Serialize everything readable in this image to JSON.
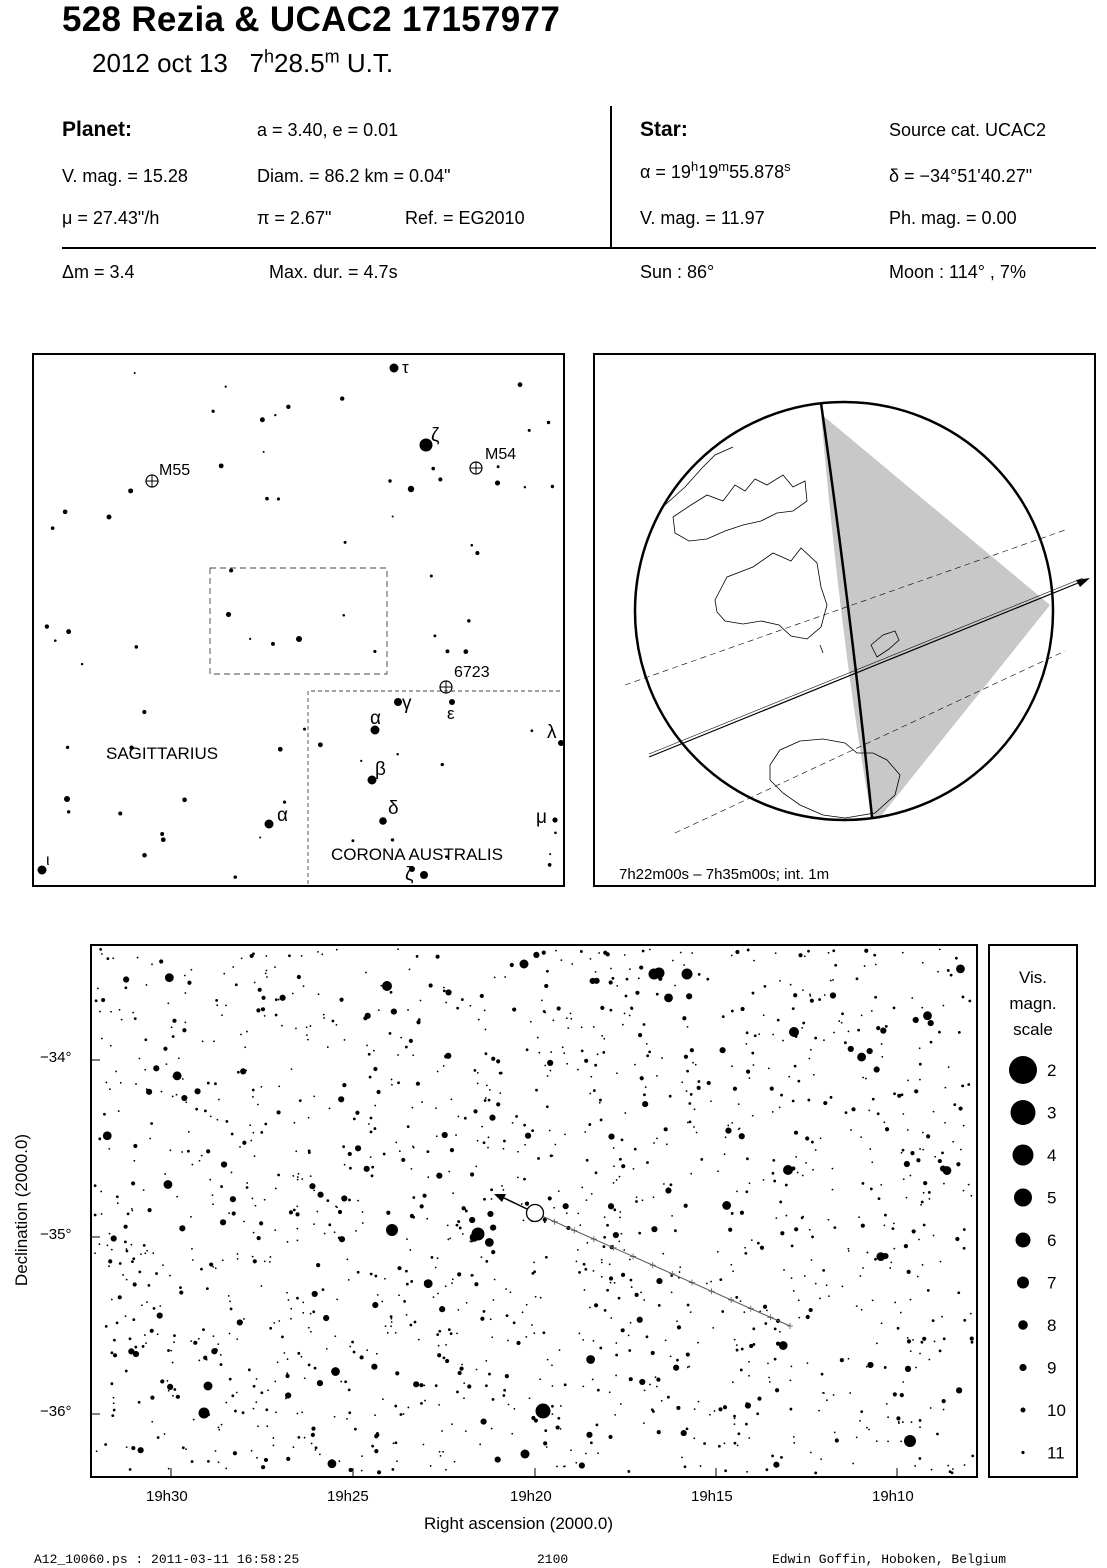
{
  "header": {
    "title": "528 Rezia  &  UCAC2 17157977",
    "date": "2012 oct 13",
    "time_h": "7",
    "time_h_unit": "h",
    "time_m": "28.5",
    "time_m_unit": "m",
    "time_suffix": "U.T."
  },
  "planet": {
    "label": "Planet:",
    "orbit": "a = 3.40, e = 0.01",
    "vmag": "V. mag. = 15.28",
    "diam": "Diam. = 86.2 km = 0.04\"",
    "mu": "μ =  27.43\"/h",
    "pi": "π =  2.67\"",
    "ref": "Ref. = EG2010"
  },
  "star": {
    "label": "Star:",
    "source": "Source cat.  UCAC2",
    "alpha_prefix": "α = 19",
    "alpha_h": "h",
    "alpha_mid": "19",
    "alpha_m": "m",
    "alpha_sec": "55.878",
    "alpha_s": "s",
    "delta": "δ = −34°51'40.27\"",
    "vmag": "V. mag. = 11.97",
    "phmag": "Ph. mag. =  0.00"
  },
  "event": {
    "dm": "Δm = 3.4",
    "maxdur": "Max. dur. = 4.7s",
    "sun": "Sun :  86°",
    "moon": "Moon : 114° ,  7%"
  },
  "finder": {
    "objects": {
      "m55": "M55",
      "m54": "M54",
      "ngc6723": "6723",
      "sagittarius": "SAGITTARIUS",
      "corona": "CORONA AUSTRALIS",
      "tau": "τ",
      "zeta": "ζ",
      "alpha_sgr": "α",
      "iota": "ι",
      "alpha_cra": "α",
      "beta": "β",
      "gamma": "γ",
      "delta": "δ",
      "epsilon": "ε",
      "lambda": "λ",
      "mu": "μ",
      "zeta_cra": "ζ"
    }
  },
  "globe": {
    "caption": "7h22m00s –  7h35m00s; int.  1m"
  },
  "starmap": {
    "ylabel": "Declination (2000.0)",
    "xlabel": "Right ascension (2000.0)",
    "yticks": [
      "−34°",
      "−35°",
      "−36°"
    ],
    "xticks": [
      "19h30",
      "19h25",
      "19h20",
      "19h15",
      "19h10"
    ]
  },
  "scale": {
    "title1": "Vis.",
    "title2": "magn.",
    "title3": "scale",
    "mags": [
      "2",
      "3",
      "4",
      "5",
      "6",
      "7",
      "8",
      "9",
      "10",
      "11"
    ]
  },
  "footer": {
    "file": "A12_10060.ps : 2011-03-11 16:58:25",
    "number": "2100",
    "author": "Edwin Goffin, Hoboken, Belgium"
  }
}
